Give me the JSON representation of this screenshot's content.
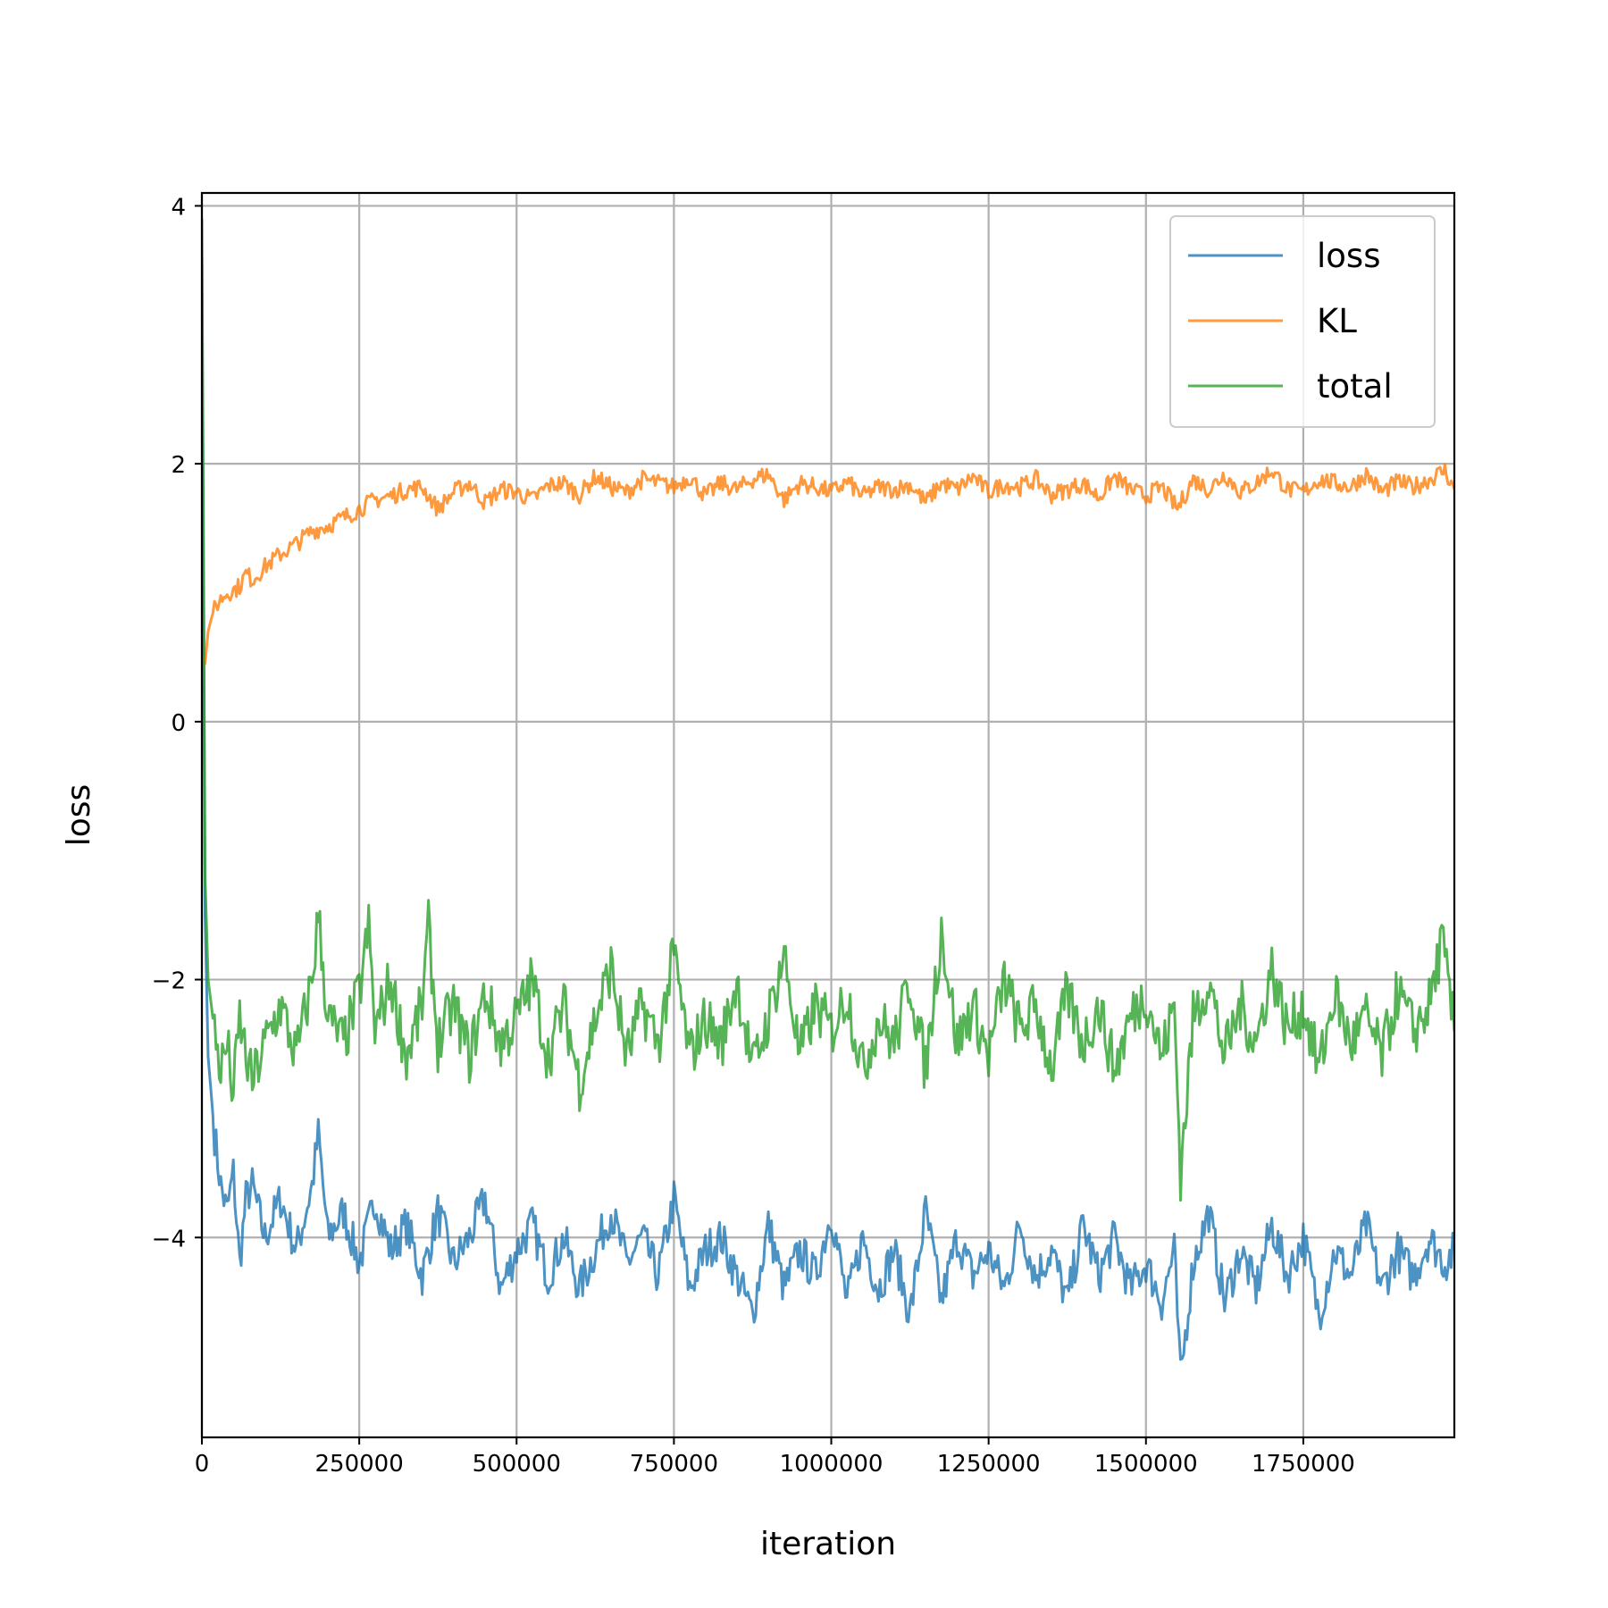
{
  "chart_data": {
    "type": "line",
    "xlabel": "iteration",
    "ylabel": "loss",
    "xlim": [
      0,
      1990000
    ],
    "ylim": [
      -5.55,
      4.1
    ],
    "grid": true,
    "legend_position": "top-right",
    "x_ticks": [
      0,
      250000,
      500000,
      750000,
      1000000,
      1250000,
      1500000,
      1750000
    ],
    "x_tick_labels": [
      "0",
      "250000",
      "500000",
      "750000",
      "1000000",
      "1250000",
      "1500000",
      "1750000"
    ],
    "y_ticks": [
      4,
      2,
      0,
      -2,
      -4
    ],
    "y_tick_labels": [
      "4",
      "2",
      "0",
      "−2",
      "−4"
    ],
    "series": [
      {
        "name": "loss",
        "color": "#1f77b4",
        "x": [
          0,
          5000,
          10000,
          20000,
          30000,
          40000,
          50000,
          60000,
          70000,
          80000,
          100000,
          125000,
          150000,
          175000,
          185000,
          200000,
          225000,
          250000,
          275000,
          300000,
          325000,
          350000,
          375000,
          400000,
          425000,
          450000,
          475000,
          500000,
          525000,
          550000,
          575000,
          600000,
          625000,
          650000,
          675000,
          700000,
          725000,
          750000,
          775000,
          800000,
          825000,
          850000,
          875000,
          900000,
          925000,
          950000,
          975000,
          1000000,
          1025000,
          1050000,
          1075000,
          1100000,
          1125000,
          1150000,
          1175000,
          1200000,
          1225000,
          1250000,
          1275000,
          1300000,
          1325000,
          1350000,
          1375000,
          1400000,
          1425000,
          1450000,
          1475000,
          1500000,
          1525000,
          1545000,
          1555000,
          1575000,
          1600000,
          1625000,
          1650000,
          1675000,
          1700000,
          1725000,
          1750000,
          1775000,
          1800000,
          1825000,
          1850000,
          1875000,
          1900000,
          1925000,
          1950000,
          1975000,
          1990000
        ],
        "y": [
          3.6,
          -1.5,
          -2.6,
          -3.2,
          -3.6,
          -3.8,
          -3.5,
          -4.2,
          -3.7,
          -3.6,
          -4.0,
          -3.7,
          -4.1,
          -3.6,
          -3.2,
          -4.0,
          -3.8,
          -4.2,
          -3.7,
          -4.1,
          -3.9,
          -4.3,
          -3.8,
          -4.2,
          -4.0,
          -3.7,
          -4.4,
          -4.1,
          -3.9,
          -4.3,
          -4.0,
          -4.4,
          -4.1,
          -3.8,
          -4.2,
          -4.0,
          -4.3,
          -3.7,
          -4.4,
          -4.1,
          -4.0,
          -4.3,
          -4.6,
          -3.9,
          -4.4,
          -4.1,
          -4.3,
          -3.8,
          -4.5,
          -4.0,
          -4.4,
          -4.1,
          -4.6,
          -3.8,
          -4.5,
          -4.0,
          -4.3,
          -4.1,
          -4.4,
          -3.9,
          -4.3,
          -4.1,
          -4.5,
          -3.9,
          -4.3,
          -4.0,
          -4.4,
          -4.2,
          -4.5,
          -4.1,
          -5.1,
          -4.2,
          -3.8,
          -4.5,
          -4.1,
          -4.4,
          -3.9,
          -4.3,
          -4.0,
          -4.6,
          -4.1,
          -4.3,
          -3.9,
          -4.4,
          -4.1,
          -4.3,
          -4.0,
          -4.2,
          -4.1
        ]
      },
      {
        "name": "KL",
        "color": "#ff7f0e",
        "x": [
          0,
          2000,
          5000,
          10000,
          15000,
          20000,
          30000,
          40000,
          50000,
          60000,
          70000,
          80000,
          100000,
          125000,
          150000,
          175000,
          200000,
          225000,
          250000,
          275000,
          300000,
          325000,
          350000,
          375000,
          400000,
          425000,
          450000,
          475000,
          500000,
          525000,
          550000,
          575000,
          600000,
          625000,
          650000,
          675000,
          700000,
          725000,
          750000,
          775000,
          800000,
          825000,
          850000,
          875000,
          900000,
          925000,
          950000,
          975000,
          1000000,
          1025000,
          1050000,
          1075000,
          1100000,
          1125000,
          1150000,
          1175000,
          1200000,
          1225000,
          1250000,
          1275000,
          1300000,
          1325000,
          1350000,
          1375000,
          1400000,
          1425000,
          1450000,
          1475000,
          1500000,
          1525000,
          1550000,
          1575000,
          1600000,
          1625000,
          1650000,
          1675000,
          1700000,
          1725000,
          1750000,
          1775000,
          1800000,
          1825000,
          1850000,
          1875000,
          1900000,
          1925000,
          1950000,
          1975000,
          1990000
        ],
        "y": [
          0.3,
          0.5,
          0.45,
          0.7,
          0.8,
          0.88,
          0.95,
          1.0,
          1.02,
          1.05,
          1.15,
          1.1,
          1.2,
          1.3,
          1.38,
          1.48,
          1.52,
          1.58,
          1.65,
          1.72,
          1.75,
          1.8,
          1.82,
          1.65,
          1.78,
          1.85,
          1.7,
          1.8,
          1.78,
          1.72,
          1.83,
          1.85,
          1.76,
          1.9,
          1.82,
          1.78,
          1.88,
          1.85,
          1.82,
          1.9,
          1.75,
          1.85,
          1.8,
          1.88,
          1.92,
          1.72,
          1.85,
          1.82,
          1.78,
          1.86,
          1.75,
          1.82,
          1.8,
          1.84,
          1.7,
          1.85,
          1.8,
          1.9,
          1.78,
          1.84,
          1.82,
          1.88,
          1.76,
          1.8,
          1.85,
          1.74,
          1.9,
          1.8,
          1.75,
          1.82,
          1.65,
          1.88,
          1.8,
          1.92,
          1.78,
          1.85,
          1.95,
          1.8,
          1.78,
          1.88,
          1.85,
          1.82,
          1.92,
          1.78,
          1.86,
          1.82,
          1.88,
          1.95,
          1.8
        ]
      },
      {
        "name": "total",
        "color": "#2ca02c",
        "x": [
          0,
          5000,
          10000,
          20000,
          30000,
          40000,
          50000,
          60000,
          70000,
          80000,
          100000,
          125000,
          150000,
          175000,
          185000,
          200000,
          225000,
          250000,
          265000,
          275000,
          300000,
          325000,
          350000,
          360000,
          375000,
          400000,
          425000,
          450000,
          475000,
          500000,
          525000,
          550000,
          575000,
          600000,
          625000,
          650000,
          675000,
          700000,
          725000,
          750000,
          775000,
          800000,
          825000,
          850000,
          875000,
          900000,
          925000,
          950000,
          975000,
          1000000,
          1025000,
          1050000,
          1075000,
          1100000,
          1125000,
          1150000,
          1175000,
          1200000,
          1225000,
          1250000,
          1275000,
          1300000,
          1325000,
          1350000,
          1375000,
          1400000,
          1425000,
          1450000,
          1475000,
          1500000,
          1525000,
          1545000,
          1555000,
          1575000,
          1600000,
          1625000,
          1650000,
          1675000,
          1700000,
          1725000,
          1750000,
          1775000,
          1800000,
          1825000,
          1850000,
          1875000,
          1900000,
          1925000,
          1950000,
          1970000,
          1990000
        ],
        "y": [
          3.9,
          -1.2,
          -2.0,
          -2.4,
          -2.7,
          -2.5,
          -2.9,
          -2.3,
          -2.6,
          -2.8,
          -2.5,
          -2.2,
          -2.6,
          -2.0,
          -1.5,
          -2.3,
          -2.5,
          -2.1,
          -1.6,
          -2.4,
          -2.0,
          -2.6,
          -2.2,
          -1.6,
          -2.5,
          -2.2,
          -2.6,
          -2.1,
          -2.5,
          -2.3,
          -2.0,
          -2.6,
          -2.2,
          -2.8,
          -2.3,
          -1.9,
          -2.6,
          -2.2,
          -2.5,
          -1.8,
          -2.6,
          -2.3,
          -2.5,
          -2.0,
          -2.7,
          -2.3,
          -1.8,
          -2.6,
          -2.2,
          -2.4,
          -2.1,
          -2.7,
          -2.3,
          -2.5,
          -2.0,
          -2.7,
          -1.6,
          -2.5,
          -2.2,
          -2.6,
          -2.0,
          -2.4,
          -2.2,
          -2.7,
          -2.1,
          -2.5,
          -2.2,
          -2.7,
          -2.3,
          -2.1,
          -2.6,
          -2.2,
          -3.5,
          -2.3,
          -2.0,
          -2.6,
          -2.2,
          -2.5,
          -1.9,
          -2.4,
          -2.2,
          -2.7,
          -2.1,
          -2.5,
          -2.3,
          -2.6,
          -2.1,
          -2.4,
          -2.2,
          -1.7,
          -2.4
        ]
      }
    ]
  }
}
